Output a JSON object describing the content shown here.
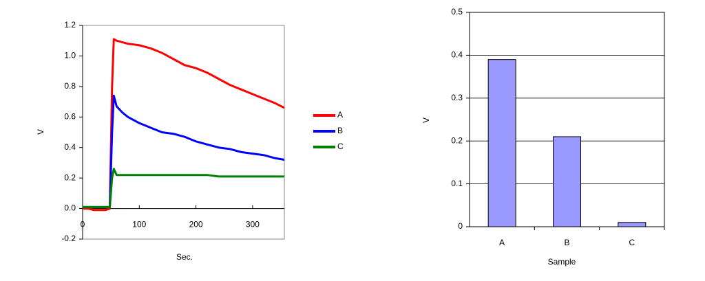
{
  "chart_data": [
    {
      "type": "line",
      "x_label": "Sec.",
      "y_label": "V",
      "x": [
        0,
        10,
        20,
        30,
        40,
        48,
        52,
        55,
        60,
        70,
        80,
        100,
        120,
        140,
        160,
        180,
        200,
        220,
        240,
        260,
        280,
        300,
        320,
        340,
        356
      ],
      "series": [
        {
          "name": "A",
          "color": "#ff0000",
          "values": [
            0,
            0,
            -0.01,
            -0.01,
            -0.01,
            0,
            0.8,
            1.11,
            1.1,
            1.09,
            1.08,
            1.07,
            1.05,
            1.02,
            0.98,
            0.94,
            0.92,
            0.89,
            0.85,
            0.81,
            0.78,
            0.75,
            0.72,
            0.69,
            0.66
          ]
        },
        {
          "name": "B",
          "color": "#0000ff",
          "values": [
            0.01,
            0.01,
            0.01,
            0.01,
            0.01,
            0.01,
            0.5,
            0.74,
            0.67,
            0.63,
            0.6,
            0.56,
            0.53,
            0.5,
            0.49,
            0.47,
            0.44,
            0.42,
            0.4,
            0.39,
            0.37,
            0.36,
            0.35,
            0.33,
            0.32
          ]
        },
        {
          "name": "C",
          "color": "#008000",
          "values": [
            0.01,
            0.01,
            0.01,
            0.01,
            0.01,
            0.01,
            0.2,
            0.26,
            0.22,
            0.22,
            0.22,
            0.22,
            0.22,
            0.22,
            0.22,
            0.22,
            0.22,
            0.22,
            0.21,
            0.21,
            0.21,
            0.21,
            0.21,
            0.21,
            0.21
          ]
        }
      ],
      "xlim": [
        0,
        356
      ],
      "xticks": [
        0,
        100,
        200,
        300
      ],
      "ylim": [
        -0.2,
        1.2
      ],
      "yticks": [
        -0.2,
        {
          "value": 0,
          "label": "0.0"
        },
        0.2,
        0.4,
        0.6,
        0.8,
        {
          "value": 1,
          "label": "1.0"
        },
        1.2
      ],
      "grid": false,
      "legend": "right"
    },
    {
      "type": "bar",
      "x_label": "Sample",
      "y_label": "V",
      "categories": [
        "A",
        "B",
        "C"
      ],
      "values": [
        0.39,
        0.21,
        0.01
      ],
      "color": "#9999ff",
      "ylim": [
        0,
        0.5
      ],
      "yticks": [
        0,
        0.1,
        0.2,
        0.3,
        0.4,
        0.5
      ],
      "grid": true
    }
  ]
}
